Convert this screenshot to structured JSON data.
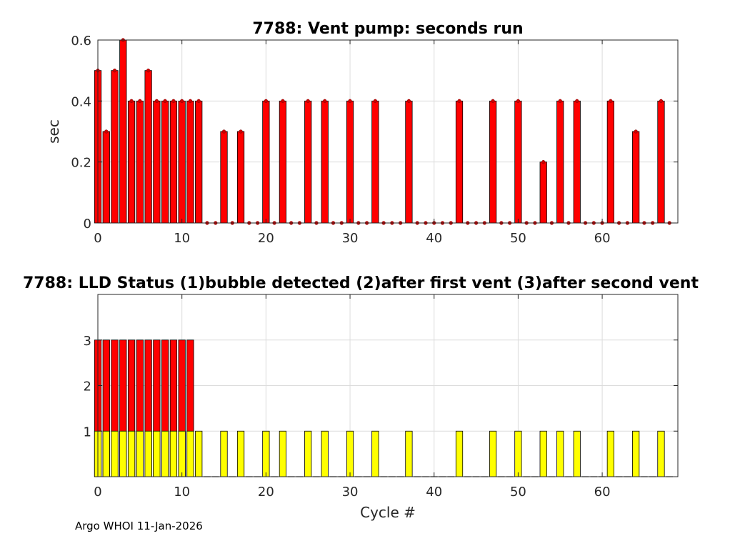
{
  "footer": "Argo WHOI 11-Jan-2026",
  "colors": {
    "red": "#ff0000",
    "yellow": "#ffff00",
    "grid": "#dcdcdc",
    "axis": "#262626"
  },
  "chart_data": [
    {
      "type": "bar",
      "title": "7788: Vent pump: seconds run",
      "xlabel": "",
      "ylabel": "sec",
      "xlim": [
        0,
        69
      ],
      "ylim": [
        0,
        0.6
      ],
      "xticks": [
        0,
        10,
        20,
        30,
        40,
        50,
        60
      ],
      "yticks": [
        0,
        0.2,
        0.4,
        0.6
      ],
      "ytick_labels": [
        "0",
        "0.2",
        "0.4",
        "0.6"
      ],
      "grid": true,
      "x": [
        0,
        1,
        2,
        3,
        4,
        5,
        6,
        7,
        8,
        9,
        10,
        11,
        12,
        13,
        14,
        15,
        16,
        17,
        18,
        19,
        20,
        21,
        22,
        23,
        24,
        25,
        26,
        27,
        28,
        29,
        30,
        31,
        32,
        33,
        34,
        35,
        36,
        37,
        38,
        39,
        40,
        41,
        42,
        43,
        44,
        45,
        46,
        47,
        48,
        49,
        50,
        51,
        52,
        53,
        54,
        55,
        56,
        57,
        58,
        59,
        60,
        61,
        62,
        63,
        64,
        65,
        66,
        67,
        68
      ],
      "series": [
        {
          "color": "#ff0000",
          "values": [
            0.5,
            0.3,
            0.5,
            0.6,
            0.4,
            0.4,
            0.5,
            0.4,
            0.4,
            0.4,
            0.4,
            0.4,
            0.4,
            0,
            0,
            0.3,
            0,
            0.3,
            0,
            0,
            0.4,
            0,
            0.4,
            0,
            0,
            0.4,
            0,
            0.4,
            0,
            0,
            0.4,
            0,
            0,
            0.4,
            0,
            0,
            0,
            0.4,
            0,
            0,
            0,
            0,
            0,
            0.4,
            0,
            0,
            0,
            0.4,
            0,
            0,
            0.4,
            0,
            0,
            0.2,
            0,
            0.4,
            0,
            0.4,
            0,
            0,
            0,
            0.4,
            0,
            0,
            0.3,
            0,
            0,
            0.4,
            0
          ]
        }
      ]
    },
    {
      "type": "bar",
      "title": "7788: LLD Status   (1)bubble detected   (2)after first vent  (3)after second vent",
      "xlabel": "Cycle #",
      "ylabel": "",
      "xlim": [
        0,
        69
      ],
      "ylim": [
        0,
        4
      ],
      "xticks": [
        0,
        10,
        20,
        30,
        40,
        50,
        60
      ],
      "yticks": [
        1,
        2,
        3
      ],
      "ytick_labels": [
        "1",
        "2",
        "3"
      ],
      "grid": true,
      "x": [
        0,
        1,
        2,
        3,
        4,
        5,
        6,
        7,
        8,
        9,
        10,
        11,
        12,
        13,
        14,
        15,
        16,
        17,
        18,
        19,
        20,
        21,
        22,
        23,
        24,
        25,
        26,
        27,
        28,
        29,
        30,
        31,
        32,
        33,
        34,
        35,
        36,
        37,
        38,
        39,
        40,
        41,
        42,
        43,
        44,
        45,
        46,
        47,
        48,
        49,
        50,
        51,
        52,
        53,
        54,
        55,
        56,
        57,
        58,
        59,
        60,
        61,
        62,
        63,
        64,
        65,
        66,
        67,
        68
      ],
      "series": [
        {
          "color": "#ff0000",
          "values": [
            3,
            3,
            3,
            3,
            3,
            3,
            3,
            3,
            3,
            3,
            3,
            3,
            0,
            0,
            0,
            0,
            0,
            0,
            0,
            0,
            0,
            0,
            0,
            0,
            0,
            0,
            0,
            0,
            0,
            0,
            0,
            0,
            0,
            0,
            0,
            0,
            0,
            0,
            0,
            0,
            0,
            0,
            0,
            0,
            0,
            0,
            0,
            0,
            0,
            0,
            0,
            0,
            0,
            0,
            0,
            0,
            0,
            0,
            0,
            0,
            0,
            0,
            0,
            0,
            0,
            0,
            0,
            0,
            0
          ]
        },
        {
          "color": "#ffff00",
          "values": [
            1,
            1,
            1,
            1,
            1,
            1,
            1,
            1,
            1,
            1,
            1,
            1,
            1,
            0,
            0,
            1,
            0,
            1,
            0,
            0,
            1,
            0,
            1,
            0,
            0,
            1,
            0,
            1,
            0,
            0,
            1,
            0,
            0,
            1,
            0,
            0,
            0,
            1,
            0,
            0,
            0,
            0,
            0,
            1,
            0,
            0,
            0,
            1,
            0,
            0,
            1,
            0,
            0,
            1,
            0,
            1,
            0,
            1,
            0,
            0,
            0,
            1,
            0,
            0,
            1,
            0,
            0,
            1,
            0
          ]
        }
      ]
    }
  ]
}
